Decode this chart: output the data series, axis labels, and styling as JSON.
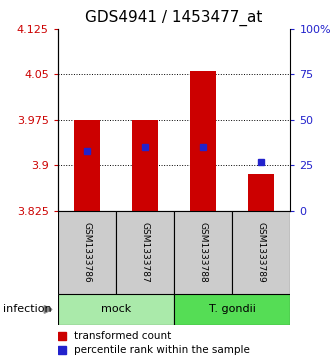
{
  "title": "GDS4941 / 1453477_at",
  "samples": [
    "GSM1333786",
    "GSM1333787",
    "GSM1333788",
    "GSM1333789"
  ],
  "groups": [
    "mock",
    "mock",
    "T. gondii",
    "T. gondii"
  ],
  "factor_label": "infection",
  "transformed_counts": [
    3.975,
    3.975,
    4.055,
    3.885
  ],
  "percentile_ranks": [
    33,
    35,
    35,
    27
  ],
  "ylim": [
    3.825,
    4.125
  ],
  "yticks": [
    3.825,
    3.9,
    3.975,
    4.05,
    4.125
  ],
  "ylim_right": [
    0,
    100
  ],
  "yticks_right": [
    0,
    25,
    50,
    75,
    100
  ],
  "bar_color": "#cc0000",
  "marker_color": "#2222cc",
  "bar_width": 0.45,
  "marker_size": 5,
  "mock_color": "#aaeaaa",
  "gondii_color": "#55dd55",
  "title_fontsize": 11,
  "tick_fontsize": 8,
  "legend_fontsize": 7.5,
  "left_tick_color": "#cc0000",
  "right_tick_color": "#2222cc",
  "background_label": "#cccccc"
}
